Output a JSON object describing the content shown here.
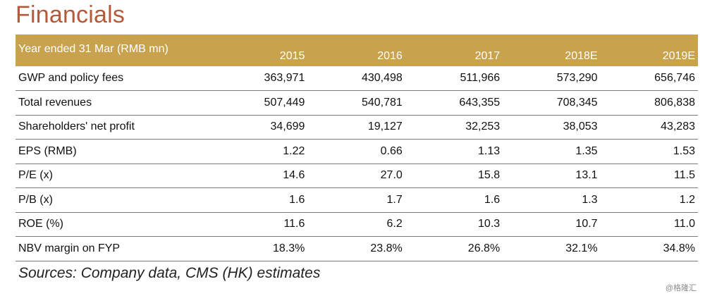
{
  "title": "Financials",
  "table": {
    "header_label": "Year ended 31 Mar (RMB mn)",
    "years": [
      "2015",
      "2016",
      "2017",
      "2018E",
      "2019E"
    ],
    "rows": [
      {
        "label": "GWP and policy fees",
        "values": [
          "363,971",
          "430,498",
          "511,966",
          "573,290",
          "656,746"
        ]
      },
      {
        "label": "Total revenues",
        "values": [
          "507,449",
          "540,781",
          "643,355",
          "708,345",
          "806,838"
        ]
      },
      {
        "label": "Shareholders' net profit",
        "values": [
          "34,699",
          "19,127",
          "32,253",
          "38,053",
          "43,283"
        ]
      },
      {
        "label": "EPS (RMB)",
        "values": [
          "1.22",
          "0.66",
          "1.13",
          "1.35",
          "1.53"
        ]
      },
      {
        "label": "P/E (x)",
        "values": [
          "14.6",
          "27.0",
          "15.8",
          "13.1",
          "11.5"
        ]
      },
      {
        "label": "P/B (x)",
        "values": [
          "1.6",
          "1.7",
          "1.6",
          "1.3",
          "1.2"
        ]
      },
      {
        "label": "ROE (%)",
        "values": [
          "11.6",
          "6.2",
          "10.3",
          "10.7",
          "11.0"
        ]
      },
      {
        "label": "NBV margin on FYP",
        "values": [
          "18.3%",
          "23.8%",
          "26.8%",
          "32.1%",
          "34.8%"
        ]
      }
    ]
  },
  "source": "Sources: Company data, CMS (HK) estimates",
  "watermark": "@格隆汇",
  "colors": {
    "title": "#b45a3a",
    "header_bg": "#c9a24e"
  }
}
